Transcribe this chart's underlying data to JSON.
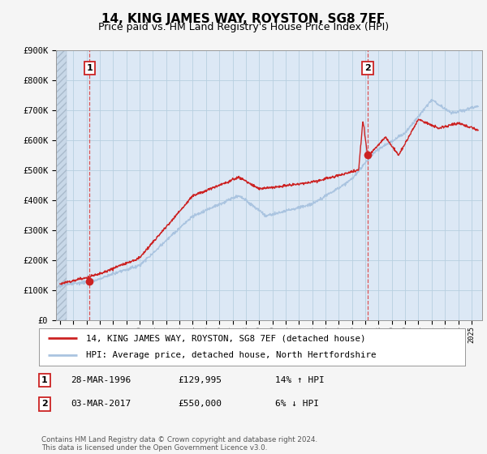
{
  "title": "14, KING JAMES WAY, ROYSTON, SG8 7EF",
  "subtitle": "Price paid vs. HM Land Registry's House Price Index (HPI)",
  "ylim": [
    0,
    900000
  ],
  "yticks": [
    0,
    100000,
    200000,
    300000,
    400000,
    500000,
    600000,
    700000,
    800000,
    900000
  ],
  "ytick_labels": [
    "£0",
    "£100K",
    "£200K",
    "£300K",
    "£400K",
    "£500K",
    "£600K",
    "£700K",
    "£800K",
    "£900K"
  ],
  "hpi_color": "#aac4e0",
  "price_color": "#cc2222",
  "dashed_color": "#dd4444",
  "plot_bg_color": "#dce8f5",
  "fig_bg_color": "#f5f5f5",
  "legend_label_price": "14, KING JAMES WAY, ROYSTON, SG8 7EF (detached house)",
  "legend_label_hpi": "HPI: Average price, detached house, North Hertfordshire",
  "transaction1_date": "28-MAR-1996",
  "transaction1_price": "£129,995",
  "transaction1_hpi": "14% ↑ HPI",
  "transaction1_year": 1996.23,
  "transaction1_value": 129995,
  "transaction2_date": "03-MAR-2017",
  "transaction2_price": "£550,000",
  "transaction2_hpi": "6% ↓ HPI",
  "transaction2_year": 2017.17,
  "transaction2_value": 550000,
  "footer": "Contains HM Land Registry data © Crown copyright and database right 2024.\nThis data is licensed under the Open Government Licence v3.0.",
  "title_fontsize": 11,
  "subtitle_fontsize": 9,
  "tick_fontsize": 7.5
}
